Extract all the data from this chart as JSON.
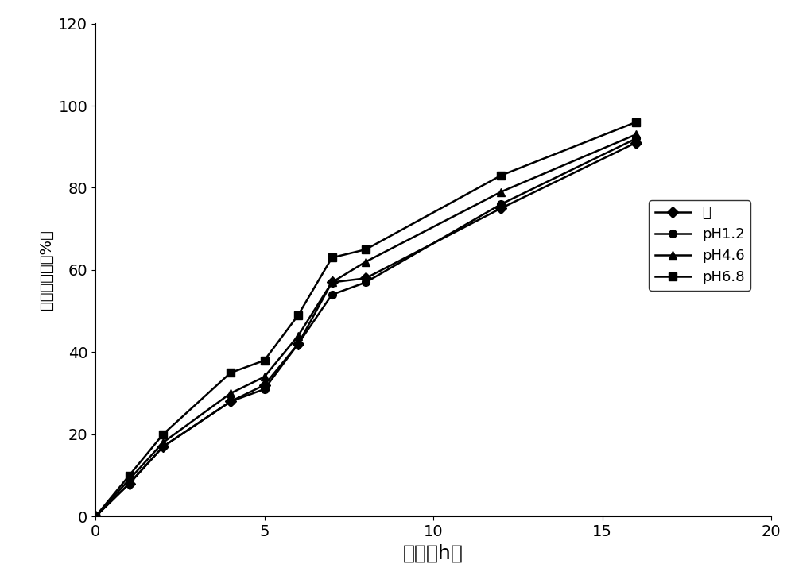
{
  "series": [
    {
      "label": "水",
      "marker": "D",
      "x": [
        0,
        1,
        2,
        4,
        5,
        6,
        7,
        8,
        12,
        16
      ],
      "y": [
        0,
        8,
        17,
        28,
        32,
        42,
        57,
        58,
        75,
        91
      ]
    },
    {
      "label": "pH1.2",
      "marker": "o",
      "x": [
        0,
        1,
        2,
        4,
        5,
        6,
        7,
        8,
        12,
        16
      ],
      "y": [
        0,
        8,
        17,
        28,
        31,
        42,
        54,
        57,
        76,
        92
      ]
    },
    {
      "label": "pH4.6",
      "marker": "^",
      "x": [
        0,
        1,
        2,
        4,
        5,
        6,
        7,
        8,
        12,
        16
      ],
      "y": [
        0,
        9,
        18,
        30,
        34,
        44,
        57,
        62,
        79,
        93
      ]
    },
    {
      "label": "pH6.8",
      "marker": "s",
      "x": [
        0,
        1,
        2,
        4,
        5,
        6,
        7,
        8,
        12,
        16
      ],
      "y": [
        0,
        10,
        20,
        35,
        38,
        49,
        63,
        65,
        83,
        96
      ]
    }
  ],
  "line_color": "#000000",
  "xlabel": "时间（h）",
  "ylabel": "累积释放度（%）",
  "xlim": [
    0,
    20
  ],
  "ylim": [
    0,
    120
  ],
  "xticks": [
    0,
    5,
    10,
    15,
    20
  ],
  "yticks": [
    0,
    20,
    40,
    60,
    80,
    100,
    120
  ],
  "legend_loc": "center right",
  "xlabel_fontsize": 18,
  "ylabel_fontsize": 14,
  "tick_fontsize": 14,
  "legend_fontsize": 13,
  "markersize": 7,
  "linewidth": 1.8,
  "background_color": "#ffffff"
}
